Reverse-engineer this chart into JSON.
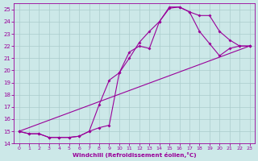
{
  "xlabel": "Windchill (Refroidissement éolien,°C)",
  "bg_color": "#cce8e8",
  "grid_color": "#aacccc",
  "line_color": "#990099",
  "xlim": [
    -0.5,
    23.5
  ],
  "ylim": [
    14,
    25.5
  ],
  "xticks": [
    0,
    1,
    2,
    3,
    4,
    5,
    6,
    7,
    8,
    9,
    10,
    11,
    12,
    13,
    14,
    15,
    16,
    17,
    18,
    19,
    20,
    21,
    22,
    23
  ],
  "yticks": [
    14,
    15,
    16,
    17,
    18,
    19,
    20,
    21,
    22,
    23,
    24,
    25
  ],
  "line1_x": [
    0,
    1,
    2,
    3,
    4,
    5,
    6,
    7,
    8,
    9,
    10,
    11,
    12,
    13,
    14,
    15,
    16,
    17,
    18,
    19,
    20,
    21,
    22,
    23
  ],
  "line1_y": [
    15.0,
    14.8,
    14.8,
    14.5,
    14.5,
    14.5,
    14.6,
    15.0,
    15.3,
    15.5,
    19.8,
    21.0,
    22.3,
    23.2,
    24.0,
    25.1,
    25.2,
    24.8,
    23.2,
    22.2,
    21.2,
    21.8,
    22.0,
    22.0
  ],
  "line2_x": [
    0,
    1,
    2,
    3,
    4,
    5,
    6,
    7,
    8,
    9,
    10,
    11,
    12,
    13,
    14,
    15,
    16,
    17,
    18,
    19,
    20,
    21,
    22,
    23
  ],
  "line2_y": [
    15.0,
    14.8,
    14.8,
    14.5,
    14.5,
    14.5,
    14.6,
    15.0,
    17.2,
    19.2,
    19.8,
    21.5,
    22.0,
    21.8,
    24.0,
    25.2,
    25.2,
    24.8,
    24.5,
    24.5,
    23.2,
    22.5,
    22.0,
    22.0
  ],
  "line3_x": [
    0,
    23
  ],
  "line3_y": [
    15.0,
    22.0
  ]
}
